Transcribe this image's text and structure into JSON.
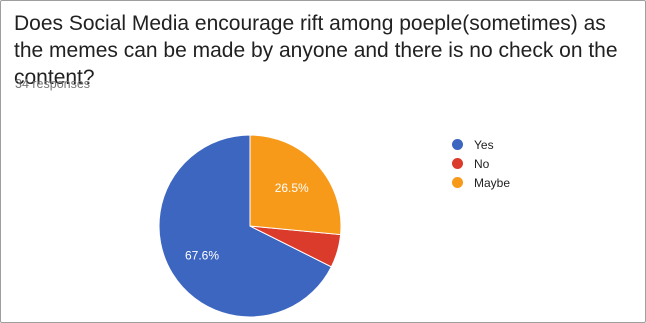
{
  "question": {
    "title": "Does Social Media encourage rift among poeple(sometimes) as the memes can be made by anyone and there is no check on the content?",
    "responses_label": "34 responses"
  },
  "chart_data": {
    "type": "pie",
    "categories": [
      "Yes",
      "No",
      "Maybe"
    ],
    "values": [
      67.6,
      5.9,
      26.5
    ],
    "colors": [
      "#3d66c0",
      "#da3b2a",
      "#f79a1a"
    ],
    "data_labels": [
      "67.6%",
      "",
      "26.5%"
    ],
    "legend_position": "right"
  }
}
